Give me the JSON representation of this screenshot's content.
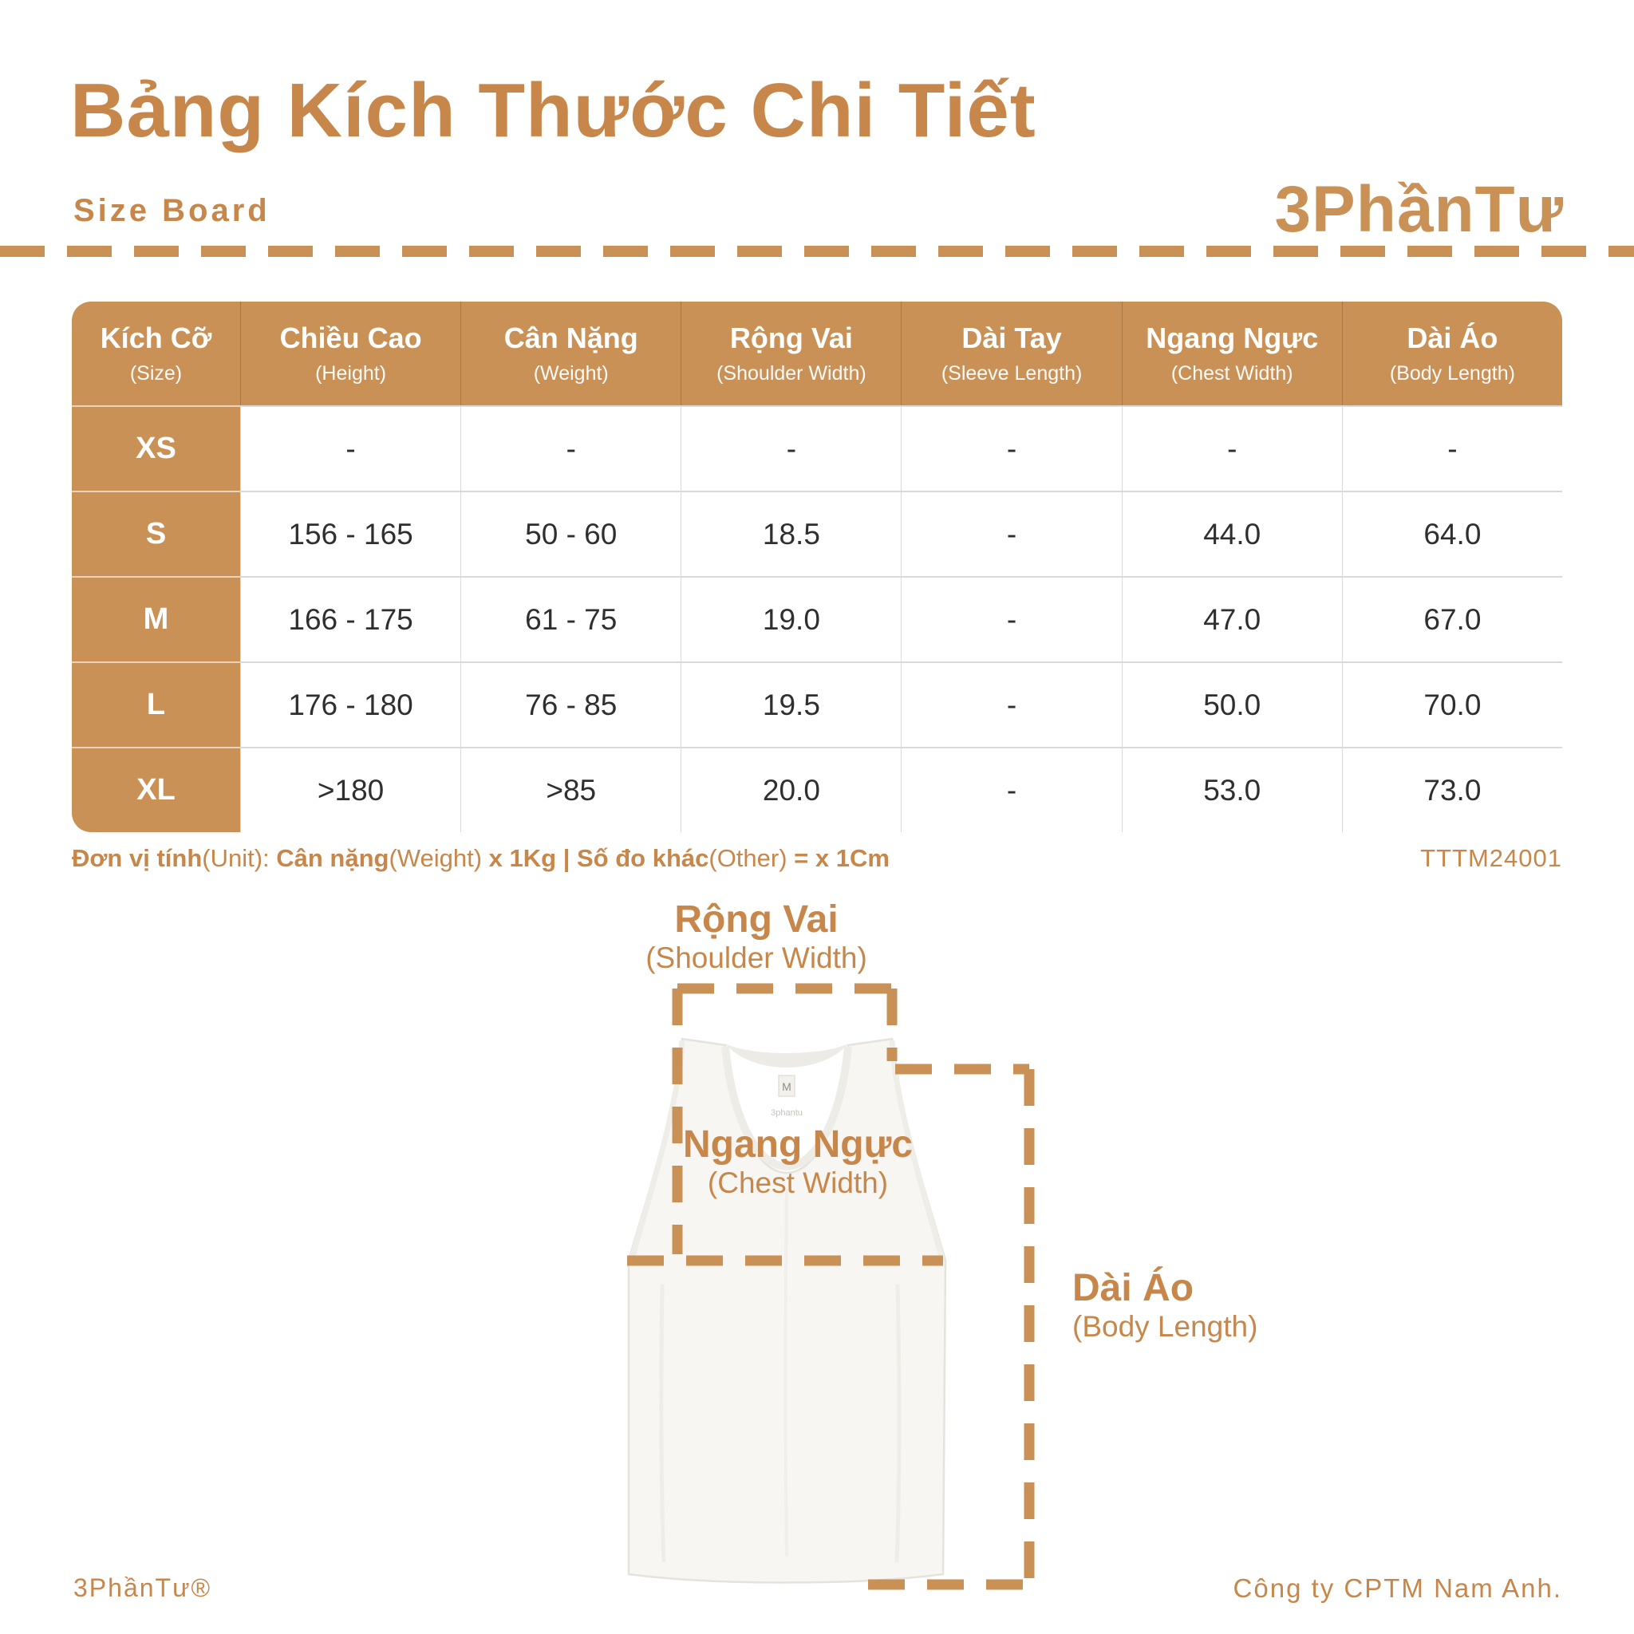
{
  "page": {
    "title": "Bảng Kích Thước Chi Tiết",
    "subtitle": "Size Board",
    "brand_logo": "3PhầnTư",
    "product_code": "TTTM24001",
    "footer_left": "3PhầnTư®",
    "footer_right": "Công ty CPTM Nam Anh."
  },
  "colors": {
    "accent_fill": "#c99156",
    "accent_text": "#c7874a",
    "cell_text": "#2f2f2f",
    "grid_line": "#d9d9d9"
  },
  "table": {
    "columns": [
      {
        "vi": "Kích Cỡ",
        "en": "(Size)"
      },
      {
        "vi": "Chiều Cao",
        "en": "(Height)"
      },
      {
        "vi": "Cân Nặng",
        "en": "(Weight)"
      },
      {
        "vi": "Rộng Vai",
        "en": "(Shoulder Width)"
      },
      {
        "vi": "Dài Tay",
        "en": "(Sleeve Length)"
      },
      {
        "vi": "Ngang Ngực",
        "en": "(Chest Width)"
      },
      {
        "vi": "Dài Áo",
        "en": "(Body Length)"
      }
    ],
    "rows": [
      {
        "size": "XS",
        "values": [
          "-",
          "-",
          "-",
          "-",
          "-",
          "-"
        ]
      },
      {
        "size": "S",
        "values": [
          "156 - 165",
          "50 - 60",
          "18.5",
          "-",
          "44.0",
          "64.0"
        ]
      },
      {
        "size": "M",
        "values": [
          "166 - 175",
          "61 - 75",
          "19.0",
          "-",
          "47.0",
          "67.0"
        ]
      },
      {
        "size": "L",
        "values": [
          "176 - 180",
          "76 - 85",
          "19.5",
          "-",
          "50.0",
          "70.0"
        ]
      },
      {
        "size": "XL",
        "values": [
          ">180",
          ">85",
          "20.0",
          "-",
          "53.0",
          "73.0"
        ]
      }
    ]
  },
  "unit_note": {
    "segments": [
      {
        "t": "Đơn vị tính",
        "w": "b"
      },
      {
        "t": "(Unit): ",
        "w": "l"
      },
      {
        "t": "Cân nặng",
        "w": "b"
      },
      {
        "t": "(Weight)",
        "w": "l"
      },
      {
        "t": " x 1Kg | ",
        "w": "b"
      },
      {
        "t": "Số đo khác",
        "w": "b"
      },
      {
        "t": "(Other)",
        "w": "l"
      },
      {
        "t": " = x 1Cm",
        "w": "b"
      }
    ]
  },
  "diagram": {
    "shoulder": {
      "vi": "Rộng Vai",
      "en": "(Shoulder Width)"
    },
    "chest": {
      "vi": "Ngang Ngực",
      "en": "(Chest Width)"
    },
    "body": {
      "vi": "Dài Áo",
      "en": "(Body Length)"
    },
    "shirt_tag_size": "M",
    "shirt_tag_brand": "3phantu"
  }
}
